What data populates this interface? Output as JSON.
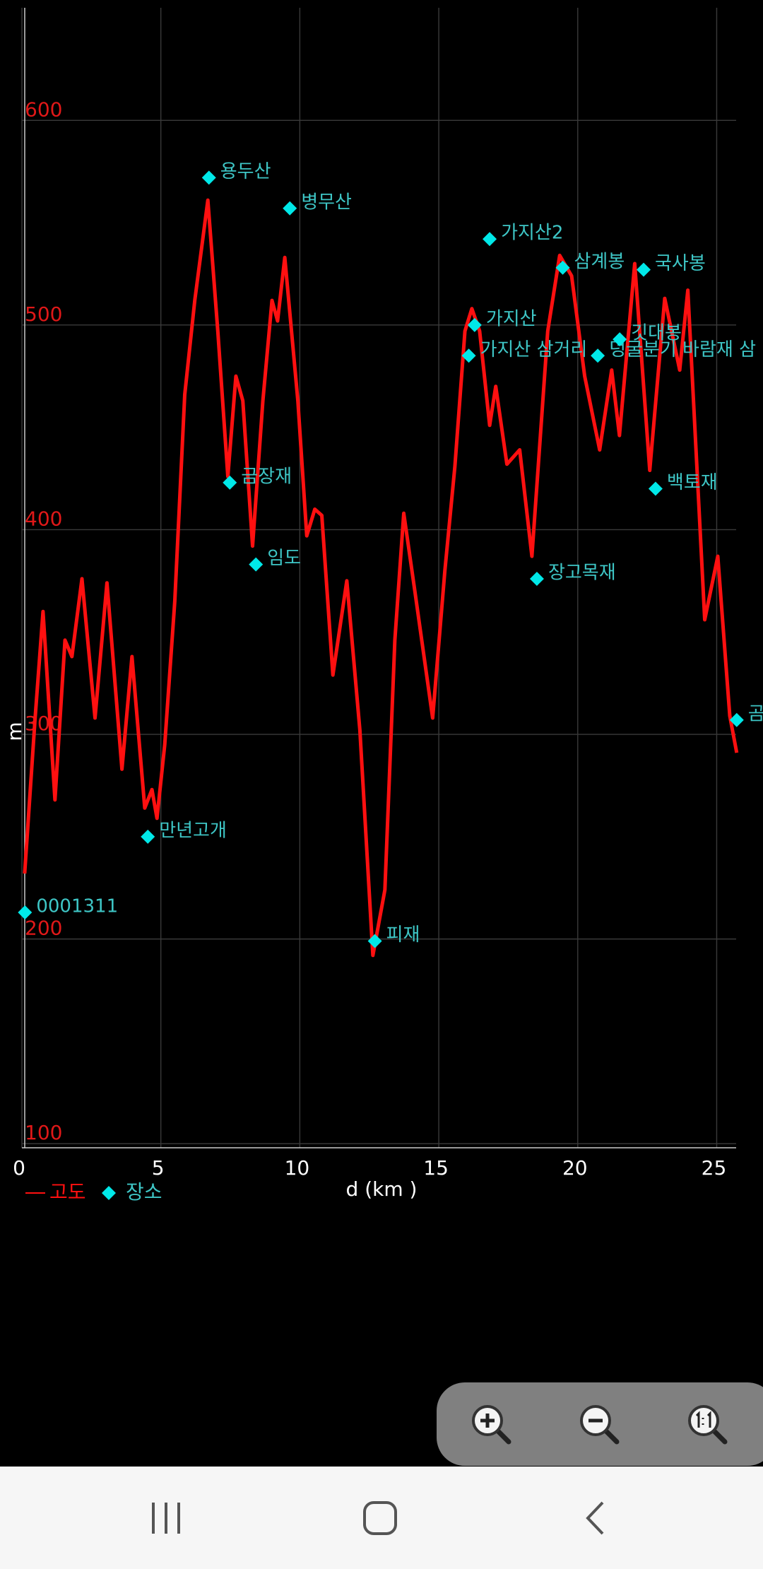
{
  "chart_data": {
    "type": "line",
    "x_label": "d (km )",
    "y_label": "m",
    "xlim": [
      0,
      25.7
    ],
    "ylim": [
      98,
      655
    ],
    "xticks": [
      0,
      5,
      10,
      15,
      20,
      25
    ],
    "yticks": [
      100,
      200,
      300,
      400,
      500,
      600
    ],
    "grid": true,
    "legend": "bottom-left",
    "series": [
      {
        "name": "고도",
        "color": "#ff1010",
        "style": "line",
        "x": [
          0.1,
          0.47,
          0.76,
          1.19,
          1.55,
          1.8,
          2.16,
          2.63,
          3.06,
          3.6,
          3.96,
          4.42,
          4.68,
          4.86,
          5.14,
          5.5,
          5.86,
          6.22,
          6.69,
          7.05,
          7.41,
          7.7,
          7.95,
          8.3,
          8.67,
          9.0,
          9.2,
          9.46,
          9.93,
          10.25,
          10.54,
          10.79,
          11.19,
          11.69,
          12.16,
          12.63,
          13.06,
          13.42,
          13.74,
          14.14,
          14.78,
          15.22,
          15.58,
          15.94,
          16.19,
          16.47,
          16.83,
          17.05,
          17.45,
          17.91,
          18.35,
          18.92,
          19.35,
          19.78,
          20.25,
          20.79,
          21.22,
          21.5,
          22.05,
          22.59,
          23.13,
          23.67,
          23.96,
          24.57,
          25.04,
          25.47,
          25.72
        ],
        "values": [
          232,
          307,
          360,
          268,
          346,
          338,
          376,
          308,
          374,
          283,
          338,
          264,
          273,
          259,
          295,
          365,
          466,
          512,
          561,
          497,
          426,
          475,
          463,
          392,
          463,
          512,
          502,
          533,
          463,
          397,
          410,
          407,
          329,
          375,
          302,
          192,
          224,
          346,
          408,
          370,
          308,
          380,
          431,
          497,
          508,
          497,
          451,
          470,
          432,
          439,
          387,
          497,
          534,
          524,
          475,
          439,
          478,
          446,
          530,
          429,
          513,
          478,
          517,
          356,
          387,
          309,
          291
        ]
      },
      {
        "name": "장소",
        "color": "#00e8e8",
        "style": "markers",
        "x": [
          0.11,
          4.53,
          6.73,
          7.48,
          8.42,
          9.64,
          12.7,
          16.08,
          16.29,
          16.83,
          18.53,
          19.46,
          20.72,
          21.51,
          22.37,
          22.8,
          25.72
        ],
        "values": [
          213,
          250,
          572,
          423,
          383,
          557,
          199,
          485,
          500,
          542,
          376,
          528,
          485,
          493,
          527,
          420,
          307
        ],
        "labels": [
          "0001311",
          "만년고개",
          "용두산",
          "금장재",
          "임도",
          "병무산",
          "피재",
          "가지산 삼거리",
          "가지산",
          "가지산2",
          "장고목재",
          "삼계봉",
          "덩굴분기 바람재 삼",
          "깃대봉",
          "국사봉",
          "백토재",
          "곰"
        ]
      }
    ]
  }
}
